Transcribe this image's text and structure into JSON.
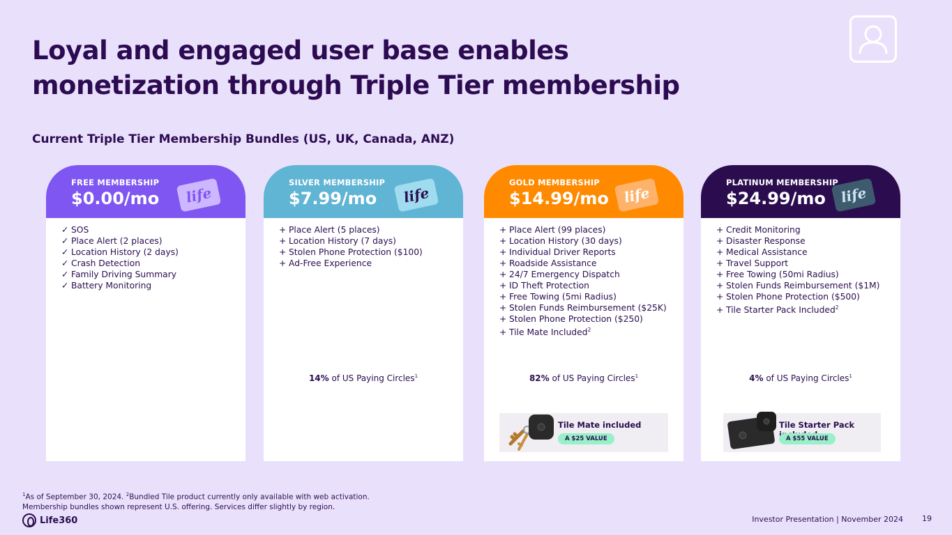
{
  "title": "Loyal and engaged user base enables monetization through Triple Tier membership",
  "subtitle": "Current Triple Tier Membership Bundles (US, UK, Canada, ANZ)",
  "colors": {
    "background": "#e9e1fb",
    "free": "#7f56f2",
    "silver": "#60b4d4",
    "gold": "#ff8a00",
    "platinum": "#2b0d4f",
    "value_badge": "#98f0c9"
  },
  "plans": {
    "free": {
      "tier": "FREE MEMBERSHIP",
      "price": "$0.00/mo",
      "card_text": "life",
      "marker": "✓",
      "features": [
        "SOS",
        "Place Alert (2 places)",
        "Location History (2 days)",
        "Crash Detection",
        "Family Driving Summary",
        "Battery Monitoring"
      ]
    },
    "silver": {
      "tier": "SILVER MEMBERSHIP",
      "price": "$7.99/mo",
      "card_text": "life",
      "marker": "+",
      "features": [
        "Place Alert (5 places)",
        "Location History (7 days)",
        "Stolen Phone Protection ($100)",
        "Ad-Free Experience"
      ],
      "share_pct": "14%",
      "share_text": " of US Paying Circles",
      "share_note": "1"
    },
    "gold": {
      "tier": "GOLD MEMBERSHIP",
      "price": "$14.99/mo",
      "card_text": "life",
      "marker": "+",
      "features": [
        "Place Alert (99 places)",
        "Location History (30 days)",
        "Individual Driver Reports",
        "Roadside Assistance",
        "24/7 Emergency Dispatch",
        "ID Theft Protection",
        "Free Towing (5mi Radius)",
        "Stolen Funds Reimbursement ($25K)",
        "Stolen Phone Protection ($250)",
        "Tile Mate Included"
      ],
      "last_note": "2",
      "share_pct": "82%",
      "share_text": " of US Paying Circles",
      "share_note": "1",
      "promo_label": "Tile Mate included",
      "promo_value": "A $25 VALUE"
    },
    "platinum": {
      "tier": "PLATINUM MEMBERSHIP",
      "price": "$24.99/mo",
      "card_text": "life",
      "marker": "+",
      "features": [
        "Credit Monitoring",
        "Disaster Response",
        "Medical Assistance",
        "Travel Support",
        "Free Towing (50mi Radius)",
        "Stolen Funds Reimbursement ($1M)",
        "Stolen Phone Protection ($500)",
        "Tile Starter Pack Included"
      ],
      "last_note": "2",
      "share_pct": "4%",
      "share_text": " of US Paying Circles",
      "share_note": "1",
      "promo_label": "Tile Starter Pack included",
      "promo_value": "A $55 VALUE"
    }
  },
  "footnote": {
    "n1": "1",
    "line1": "As of September 30, 2024. ",
    "n2": "2",
    "line1b": "Bundled Tile product currently only available with web activation.",
    "line2": "Membership bundles shown represent U.S. offering.  Services differ slightly by region."
  },
  "logo": "Life360",
  "footer": "Investor Presentation  |  November 2024",
  "page_number": "19"
}
